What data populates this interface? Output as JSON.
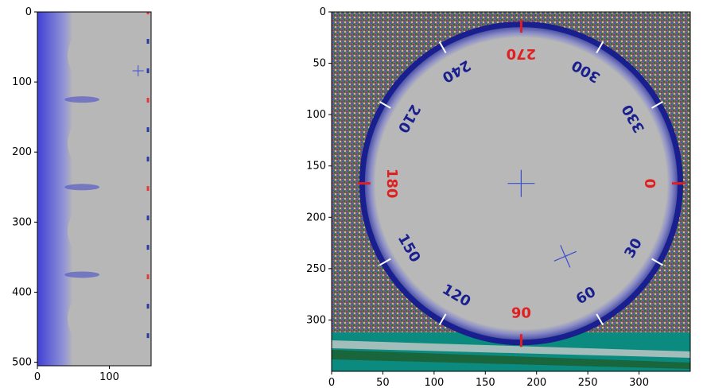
{
  "chart_data": [
    {
      "type": "image",
      "x_ticks": [
        0,
        100
      ],
      "y_ticks": [
        0,
        100,
        200,
        300,
        400,
        500
      ],
      "xlim": [
        0,
        158
      ],
      "ylim": [
        505,
        0
      ],
      "grid": false,
      "colors": {
        "blue_edge": "#3b3bd6",
        "gray": "#b7b7b7",
        "marker": "#3a4fd0",
        "red": "#e23a3a"
      },
      "crosshair": {
        "x": 140,
        "y": 84
      }
    },
    {
      "type": "image",
      "x_ticks": [
        0,
        50,
        100,
        150,
        200,
        250,
        300
      ],
      "y_ticks": [
        0,
        50,
        100,
        150,
        200,
        250,
        300
      ],
      "xlim": [
        0,
        350
      ],
      "ylim": [
        350,
        0
      ],
      "grid": false,
      "colors": {
        "ring": "#1a1f8f",
        "face": "#b8b8b8",
        "red": "#e02020",
        "teal": "#0b8a80",
        "marker": "#3a4fd0"
      },
      "dial": {
        "center": [
          185,
          167
        ],
        "radius": 158,
        "labels": [
          "270",
          "300",
          "330",
          "0",
          "30",
          "60",
          "90",
          "120",
          "150",
          "180",
          "210",
          "240"
        ],
        "label_text": [
          "270",
          "300",
          "330",
          "0",
          "30",
          "60",
          "90",
          "120",
          "150",
          "180",
          "210",
          "240"
        ]
      },
      "crosshair": {
        "x": 185,
        "y": 167
      },
      "cross_x_marker": {
        "x": 228,
        "y": 238
      }
    }
  ]
}
